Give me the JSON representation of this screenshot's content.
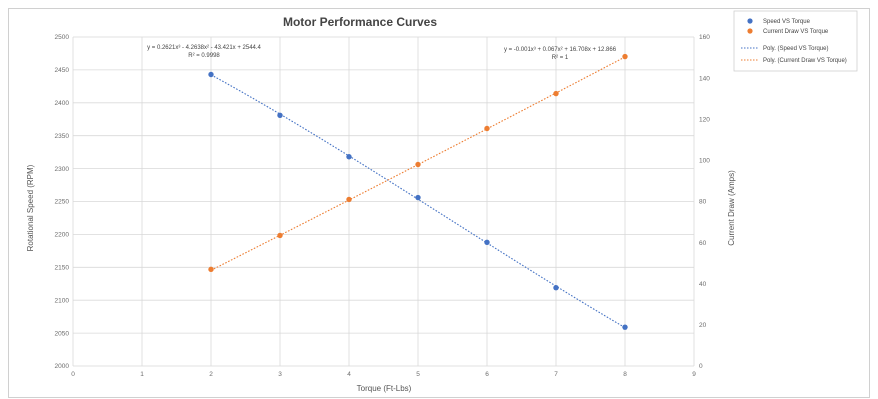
{
  "chart_data": {
    "type": "scatter",
    "title": "Motor Performance Curves",
    "xlabel": "Torque (Ft-Lbs)",
    "ylabel": "Rotational Speed (RPM)",
    "y2label": "Current Draw (Amps)",
    "xlim": [
      0,
      9
    ],
    "ylim": [
      2000,
      2500
    ],
    "y2lim": [
      0,
      160
    ],
    "xticks": [
      0,
      1,
      2,
      3,
      4,
      5,
      6,
      7,
      8,
      9
    ],
    "yticks": [
      2000,
      2050,
      2100,
      2150,
      2200,
      2250,
      2300,
      2350,
      2400,
      2450,
      2500
    ],
    "y2ticks": [
      0,
      20,
      40,
      60,
      80,
      100,
      120,
      140,
      160
    ],
    "grid": true,
    "legend_position": "right",
    "series": [
      {
        "name": "Speed VS Torque",
        "axis": "left",
        "color": "#4472c4",
        "x": [
          2,
          3,
          4,
          5,
          6,
          7,
          8
        ],
        "y": [
          2443,
          2381,
          2318,
          2256,
          2188,
          2119,
          2059
        ]
      },
      {
        "name": "Current Draw VS Torque",
        "axis": "right",
        "color": "#ed7d31",
        "x": [
          2,
          3,
          4,
          5,
          6,
          7,
          8
        ],
        "y": [
          47,
          63.5,
          81,
          98,
          115.5,
          132.5,
          150.5
        ]
      }
    ],
    "trendlines": [
      {
        "name": "Poly. (Speed VS Torque)",
        "axis": "left",
        "color": "#4472c4",
        "equation": "y = 0.2621x³ - 4.2638x² - 43.421x + 2544.4",
        "r2": "R² = 0.9998",
        "coefficients": [
          0.2621,
          -4.2638,
          -43.421,
          2544.4
        ]
      },
      {
        "name": "Poly. (Current Draw VS Torque)",
        "axis": "right",
        "color": "#ed7d31",
        "equation": "y = -0.001x³ + 0.067x² + 16.708x + 12.866",
        "r2": "R² = 1",
        "coefficients": [
          -0.001,
          0.067,
          16.708,
          12.866
        ]
      }
    ]
  }
}
